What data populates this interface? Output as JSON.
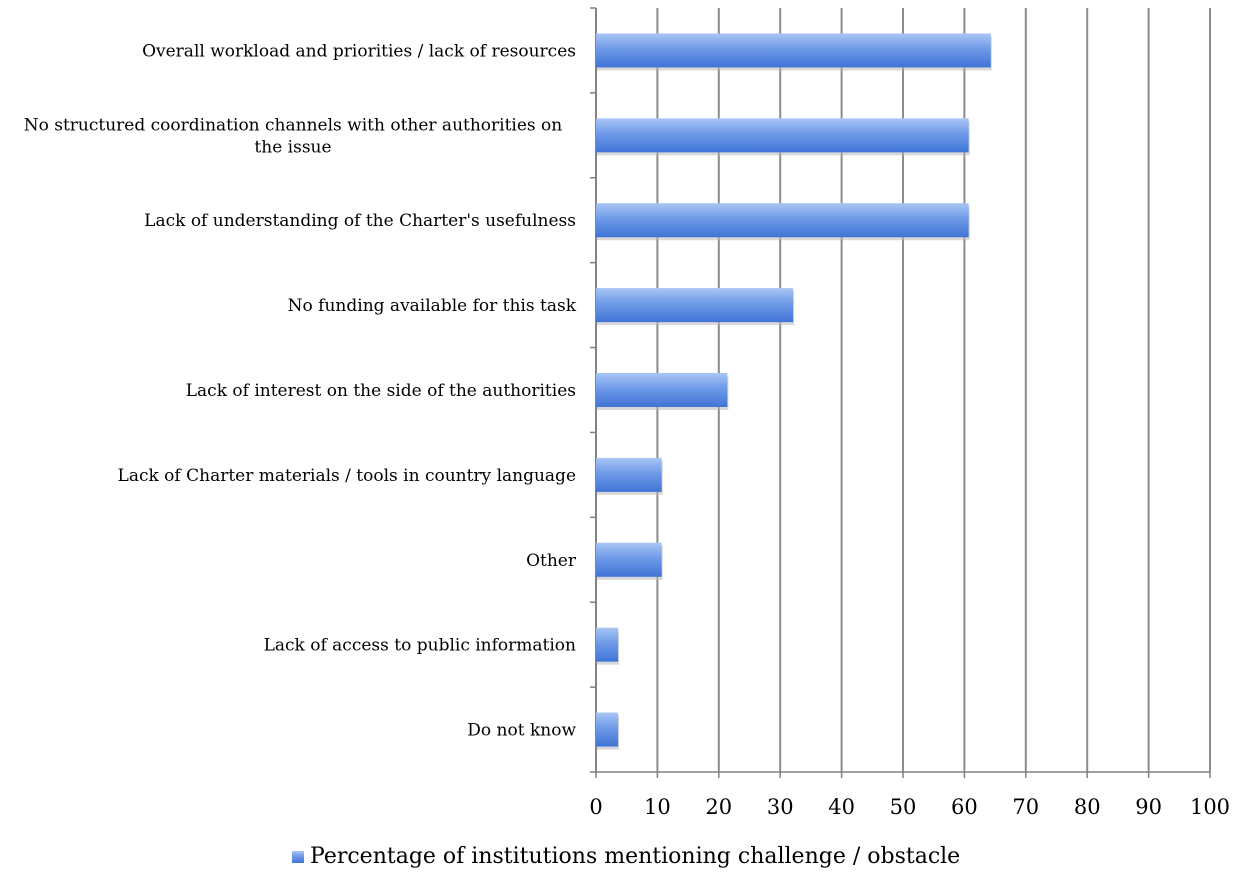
{
  "chart_data": {
    "type": "bar",
    "orientation": "horizontal",
    "categories": [
      "Overall workload and priorities / lack of resources",
      "No structured coordination channels with other authorities on the issue",
      "Lack of understanding of the Charter's usefulness",
      "No funding available for this task",
      "Lack of interest on the side of the authorities",
      "Lack of Charter materials / tools in country language",
      "Other",
      "Lack of access to public information",
      "Do not know"
    ],
    "series": [
      {
        "name": "Percentage of institutions mentioning challenge / obstacle",
        "values": [
          64.3,
          60.7,
          60.7,
          32.1,
          21.4,
          10.7,
          10.7,
          3.6,
          3.6
        ]
      }
    ],
    "xlim": [
      0,
      100
    ],
    "xticks": [
      0,
      10,
      20,
      30,
      40,
      50,
      60,
      70,
      80,
      90,
      100
    ],
    "grid": "vertical",
    "legend": "bottom",
    "colors": {
      "bar_top": "#a9c6f5",
      "bar_bottom": "#3f74d6",
      "grid": "#8c8c8c",
      "axis": "#808080"
    }
  }
}
